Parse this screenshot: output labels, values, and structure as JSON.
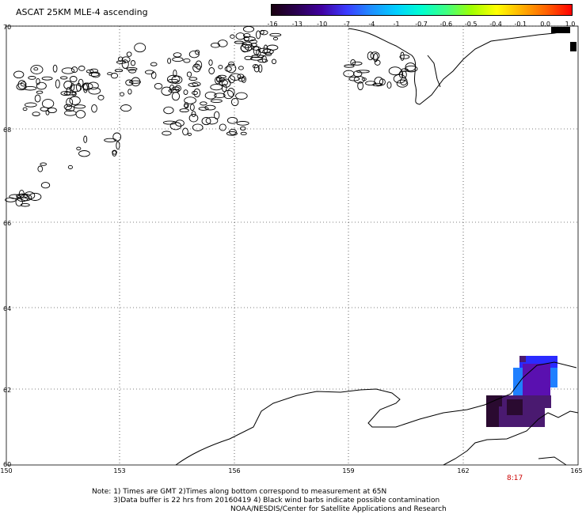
{
  "title": "ASCAT 25KM MLE-4 ascending",
  "colorbar": {
    "labels": [
      "-16",
      "-13",
      "-10",
      "-7",
      "-4",
      "-1",
      "-0.7",
      "-0.6",
      "-0.5",
      "-0.4",
      "-0.1",
      "0.0",
      "1.0"
    ],
    "colors": [
      "#1a0010",
      "#2a0050",
      "#4000a0",
      "#3b3bff",
      "#1e90ff",
      "#00d0ff",
      "#00ffd0",
      "#40ff80",
      "#a0ff00",
      "#ffff00",
      "#ffb000",
      "#ff6000",
      "#ff0000"
    ]
  },
  "axes": {
    "lat_labels": [
      "70",
      "68",
      "66",
      "64",
      "62",
      "60"
    ],
    "lon_labels": [
      "150",
      "153",
      "156",
      "159",
      "162",
      "165"
    ]
  },
  "time_label": "8:17",
  "notes": {
    "line1": "Note: 1) Times are GMT 2)Times along bottom correspond to measurement at 65N",
    "line2": "3)Data buffer is 22 hrs from 20160419 4) Black wind barbs indicate possible contamination",
    "line3": "NOAA/NESDIS/Center for Satellite Applications and Research"
  },
  "data_colors": {
    "dark": "#2a0a30",
    "purple": "#4a1a70",
    "violet": "#5a10b0",
    "blue": "#2b2bff",
    "lightblue": "#2080ff"
  }
}
